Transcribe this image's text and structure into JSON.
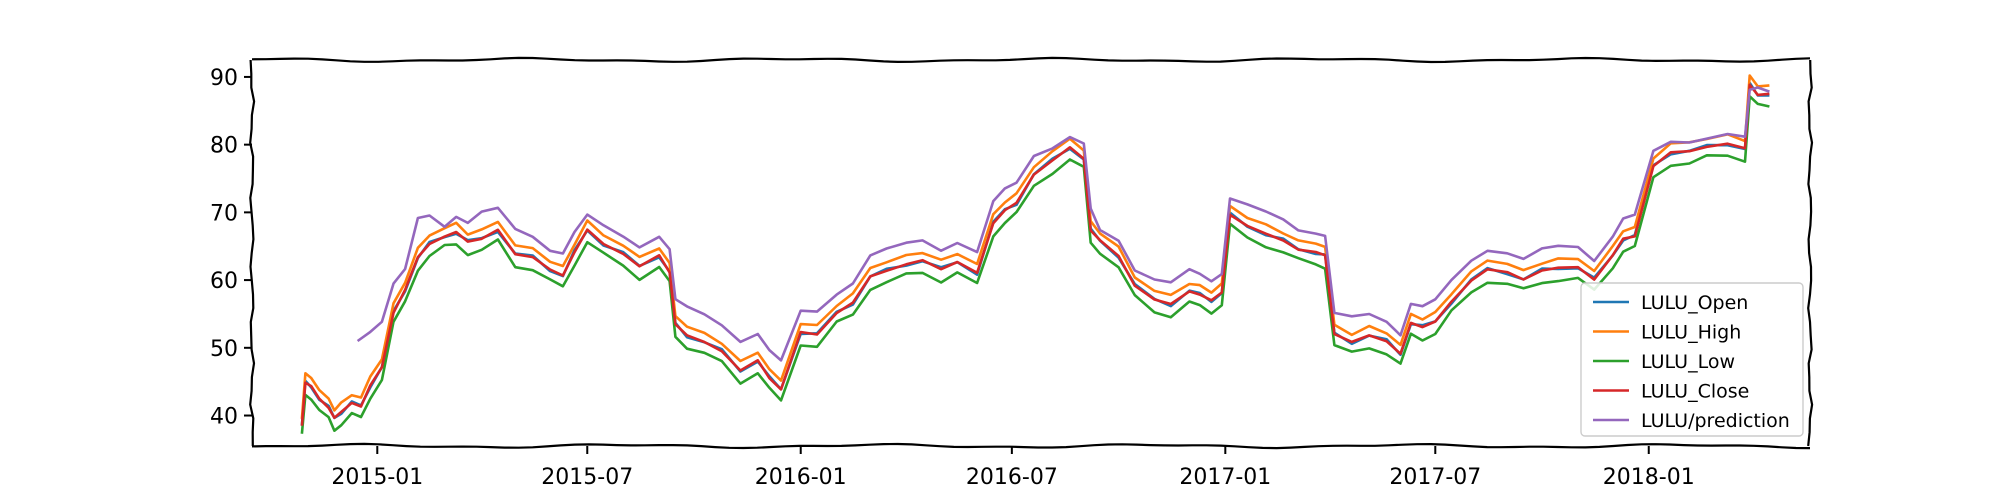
{
  "chart_data": {
    "type": "line",
    "title": "",
    "xlabel": "",
    "ylabel": "",
    "xlim": [
      "2014-09-15",
      "2018-05-20"
    ],
    "ylim": [
      35.5,
      92.5
    ],
    "y_ticks": [
      40,
      50,
      60,
      70,
      80,
      90
    ],
    "x_ticks": [
      "2015-01",
      "2015-07",
      "2016-01",
      "2016-07",
      "2017-01",
      "2017-07",
      "2018-01"
    ],
    "grid": false,
    "legend_position": "bottom-right",
    "legend": [
      "LULU_Open",
      "LULU_High",
      "LULU_Low",
      "LULU_Close",
      "LULU/prediction"
    ],
    "colors": {
      "LULU_Open": "#1f77b4",
      "LULU_High": "#ff7f0e",
      "LULU_Low": "#2ca02c",
      "LULU_Close": "#d62728",
      "LULU/prediction": "#9467bd"
    },
    "price_series": {
      "x": [
        "2014-10-28",
        "2014-10-31",
        "2014-11-05",
        "2014-11-12",
        "2014-11-20",
        "2014-11-25",
        "2014-12-01",
        "2014-12-10",
        "2014-12-18",
        "2014-12-26",
        "2015-01-05",
        "2015-01-15",
        "2015-01-25",
        "2015-02-05",
        "2015-02-15",
        "2015-02-28",
        "2015-03-10",
        "2015-03-20",
        "2015-04-01",
        "2015-04-15",
        "2015-04-30",
        "2015-05-15",
        "2015-05-30",
        "2015-06-10",
        "2015-06-20",
        "2015-07-01",
        "2015-07-15",
        "2015-08-01",
        "2015-08-15",
        "2015-09-01",
        "2015-09-10",
        "2015-09-15",
        "2015-09-25",
        "2015-10-10",
        "2015-10-25",
        "2015-11-10",
        "2015-11-25",
        "2015-12-05",
        "2015-12-15",
        "2016-01-01",
        "2016-01-15",
        "2016-02-01",
        "2016-02-15",
        "2016-03-01",
        "2016-03-15",
        "2016-04-01",
        "2016-04-15",
        "2016-05-01",
        "2016-05-15",
        "2016-06-01",
        "2016-06-15",
        "2016-06-25",
        "2016-07-05",
        "2016-07-20",
        "2016-08-05",
        "2016-08-20",
        "2016-09-01",
        "2016-09-07",
        "2016-09-15",
        "2016-10-01",
        "2016-10-15",
        "2016-11-01",
        "2016-11-15",
        "2016-12-01",
        "2016-12-10",
        "2016-12-20",
        "2016-12-29",
        "2017-01-05",
        "2017-01-20",
        "2017-02-05",
        "2017-02-20",
        "2017-03-05",
        "2017-03-20",
        "2017-03-28",
        "2017-04-05",
        "2017-04-20",
        "2017-05-05",
        "2017-05-20",
        "2017-06-01",
        "2017-06-10",
        "2017-06-20",
        "2017-07-01",
        "2017-07-15",
        "2017-08-01",
        "2017-08-15",
        "2017-09-01",
        "2017-09-15",
        "2017-10-01",
        "2017-10-15",
        "2017-11-01",
        "2017-11-15",
        "2017-12-01",
        "2017-12-10",
        "2017-12-20",
        "2018-01-05",
        "2018-01-20",
        "2018-02-05",
        "2018-02-20",
        "2018-03-10",
        "2018-03-25",
        "2018-03-29",
        "2018-04-05",
        "2018-04-15"
      ],
      "LULU_Close": [
        38.5,
        45.0,
        44.5,
        42.5,
        41.0,
        39.5,
        40.5,
        42.0,
        41.5,
        44.5,
        47.0,
        55.0,
        58.5,
        63.5,
        65.5,
        66.5,
        67.0,
        65.5,
        66.0,
        67.5,
        64.0,
        63.5,
        61.5,
        60.5,
        64.0,
        67.5,
        65.5,
        64.0,
        62.0,
        63.5,
        61.0,
        53.5,
        52.0,
        51.0,
        49.5,
        46.5,
        48.0,
        45.5,
        44.0,
        52.5,
        52.0,
        55.0,
        56.5,
        60.5,
        61.5,
        62.5,
        63.0,
        61.5,
        62.5,
        61.0,
        68.5,
        70.5,
        71.5,
        75.5,
        77.5,
        79.5,
        78.0,
        67.5,
        66.0,
        63.5,
        59.0,
        57.0,
        56.5,
        58.5,
        58.0,
        57.0,
        58.0,
        69.5,
        68.0,
        67.0,
        66.0,
        64.5,
        64.0,
        63.5,
        52.0,
        51.0,
        52.0,
        51.0,
        49.0,
        53.5,
        53.0,
        54.0,
        57.0,
        60.0,
        61.5,
        61.0,
        60.0,
        61.5,
        62.0,
        62.0,
        60.0,
        63.5,
        66.0,
        66.5,
        77.0,
        79.0,
        79.0,
        79.5,
        80.0,
        79.5,
        89.0,
        87.5,
        87.5
      ]
    },
    "prediction_series": {
      "x": [
        "2014-12-15",
        "2014-12-26",
        "2015-01-05",
        "2015-01-15",
        "2015-01-25",
        "2015-02-05",
        "2015-02-15",
        "2015-02-28",
        "2015-03-10",
        "2015-03-20",
        "2015-04-01",
        "2015-04-15",
        "2015-04-30",
        "2015-05-15",
        "2015-05-30",
        "2015-06-10",
        "2015-06-20",
        "2015-07-01",
        "2015-07-15",
        "2015-08-01",
        "2015-08-15",
        "2015-09-01",
        "2015-09-10",
        "2015-09-15",
        "2015-09-25",
        "2015-10-10",
        "2015-10-25",
        "2015-11-10",
        "2015-11-25",
        "2015-12-05",
        "2015-12-15",
        "2016-01-01",
        "2016-01-15",
        "2016-02-01",
        "2016-02-15",
        "2016-03-01",
        "2016-03-15",
        "2016-04-01",
        "2016-04-15",
        "2016-05-01",
        "2016-05-15",
        "2016-06-01",
        "2016-06-15",
        "2016-06-25",
        "2016-07-05",
        "2016-07-20",
        "2016-08-05",
        "2016-08-20",
        "2016-09-01",
        "2016-09-07",
        "2016-09-15",
        "2016-10-01",
        "2016-10-15",
        "2016-11-01",
        "2016-11-15",
        "2016-12-01",
        "2016-12-10",
        "2016-12-20",
        "2016-12-29",
        "2017-01-05",
        "2017-01-20",
        "2017-02-05",
        "2017-02-20",
        "2017-03-05",
        "2017-03-20",
        "2017-03-28",
        "2017-04-05",
        "2017-04-20",
        "2017-05-05",
        "2017-05-20",
        "2017-06-01",
        "2017-06-10",
        "2017-06-20",
        "2017-07-01",
        "2017-07-15",
        "2017-08-01",
        "2017-08-15",
        "2017-09-01",
        "2017-09-15",
        "2017-10-01",
        "2017-10-15",
        "2017-11-01",
        "2017-11-15",
        "2017-12-01",
        "2017-12-10",
        "2017-12-20",
        "2018-01-05",
        "2018-01-20",
        "2018-02-05",
        "2018-02-20",
        "2018-03-10",
        "2018-03-25",
        "2018-03-29",
        "2018-04-05",
        "2018-04-15"
      ],
      "values": [
        51.0,
        52.5,
        54.0,
        59.5,
        61.5,
        69.0,
        69.5,
        68.0,
        69.5,
        68.5,
        70.0,
        70.5,
        67.5,
        66.5,
        64.5,
        64.0,
        67.0,
        69.5,
        68.0,
        66.5,
        65.0,
        66.5,
        64.5,
        57.0,
        56.0,
        55.0,
        53.5,
        51.0,
        52.0,
        49.5,
        48.0,
        55.5,
        55.5,
        58.0,
        59.5,
        63.5,
        64.5,
        65.5,
        66.0,
        64.5,
        65.5,
        64.0,
        71.5,
        73.5,
        74.5,
        78.5,
        79.5,
        81.0,
        80.0,
        70.5,
        67.5,
        66.0,
        61.5,
        60.0,
        59.5,
        61.5,
        61.0,
        60.0,
        61.0,
        72.0,
        71.0,
        70.0,
        69.0,
        67.5,
        67.0,
        66.5,
        55.0,
        54.5,
        55.0,
        54.0,
        52.0,
        56.5,
        56.0,
        57.0,
        60.0,
        63.0,
        64.5,
        64.0,
        63.0,
        64.5,
        65.0,
        65.0,
        63.0,
        66.5,
        69.0,
        69.5,
        79.0,
        80.5,
        80.5,
        81.0,
        81.5,
        81.0,
        88.0,
        88.5,
        88.0
      ]
    }
  }
}
